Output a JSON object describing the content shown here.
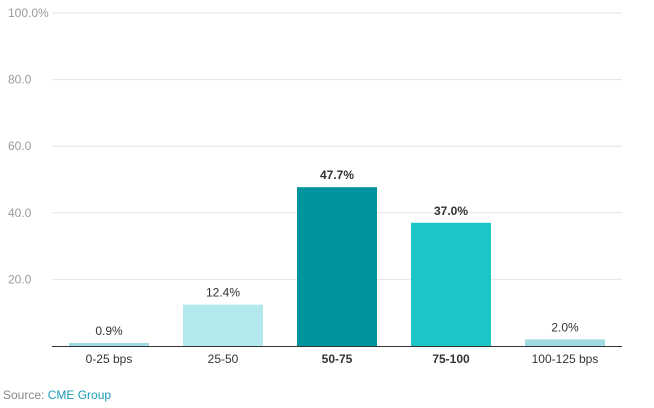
{
  "chart_data": {
    "type": "bar",
    "categories": [
      "0-25 bps",
      "25-50",
      "50-75",
      "75-100",
      "100-125 bps"
    ],
    "values": [
      0.9,
      12.4,
      47.7,
      37.0,
      2.0
    ],
    "value_labels": [
      "0.9%",
      "12.4%",
      "47.7%",
      "37.0%",
      "2.0%"
    ],
    "bold_categories": [
      false,
      false,
      true,
      true,
      false
    ],
    "bar_colors": [
      "#9fdbe0",
      "#b3e9ec",
      "#00959e",
      "#1fc6c8",
      "#9fdbe0"
    ],
    "ylim": [
      0,
      100
    ],
    "yticks": [
      {
        "value": 0,
        "label": ""
      },
      {
        "value": 20,
        "label": "20.0"
      },
      {
        "value": 40,
        "label": "40.0"
      },
      {
        "value": 60,
        "label": "60.0"
      },
      {
        "value": 80,
        "label": "80.0"
      },
      {
        "value": 100,
        "label": "100.0%"
      }
    ],
    "grid": true,
    "title": "",
    "xlabel": "",
    "ylabel": ""
  },
  "source": {
    "prefix": "Source: ",
    "name": "CME Group"
  }
}
